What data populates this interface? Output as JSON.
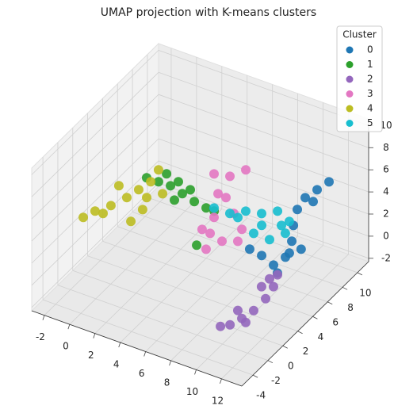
{
  "chart_data": {
    "type": "scatter3d",
    "title": "UMAP projection with K-means clusters",
    "legend_title": "Cluster",
    "legend": "upper right",
    "grid": true,
    "xlim": [
      -3,
      13.6
    ],
    "xticks": [
      -2,
      0,
      2,
      4,
      6,
      8,
      10,
      12
    ],
    "ylim": [
      -5.5,
      11.5
    ],
    "yticks": [
      -4,
      -2,
      0,
      2,
      4,
      6,
      8,
      10
    ],
    "zlim": [
      -2.3,
      10.6
    ],
    "zticks": [
      -2,
      0,
      2,
      4,
      6,
      8,
      10
    ],
    "series": [
      {
        "name": "0",
        "color": "#1f77b4",
        "x": [
          10.84,
          10.62,
          10.4,
          10.64,
          11.35,
          12.19,
          12.76,
          12.54,
          11.29,
          10.22,
          13.23,
          13.2,
          11.09,
          12.75
        ],
        "y": [
          10.87,
          9.65,
          8.43,
          6.96,
          5.23,
          3.59,
          1.77,
          0.55,
          1.08,
          1.29,
          -0.1,
          3.13,
          8.32,
          2.31
        ],
        "z": [
          4.2,
          4.2,
          4.2,
          4.2,
          4.2,
          4.2,
          4.2,
          4.2,
          4.2,
          4.2,
          4.2,
          4.2,
          4.2,
          4.2
        ]
      },
      {
        "name": "1",
        "color": "#2ca02c",
        "x": [
          0.05,
          0.97,
          1.9,
          3.05,
          4.21,
          5.27,
          5.92,
          0.97,
          2.12,
          3.28,
          2.97,
          6.92
        ],
        "y": [
          4.73,
          4.76,
          4.79,
          4.42,
          4.06,
          3.85,
          3.82,
          5.84,
          5.47,
          5.1,
          3.5,
          -0.22
        ],
        "z": [
          4.2,
          4.2,
          4.2,
          4.2,
          4.2,
          4.2,
          4.2,
          4.2,
          4.2,
          4.2,
          4.2,
          4.2
        ]
      },
      {
        "name": "2",
        "color": "#9467bd",
        "x": [
          10.8,
          11.27,
          11.52,
          11.53,
          11.31,
          11.0,
          10.54,
          10.61,
          10.58,
          11.77,
          10.58
        ],
        "y": [
          4.03,
          2.7,
          1.22,
          -0.4,
          -1.61,
          -2.67,
          -3.17,
          -0.96,
          2.27,
          -1.87,
          3.34
        ],
        "z": [
          0.3,
          0.3,
          0.3,
          0.3,
          0.3,
          0.3,
          0.3,
          0.3,
          0.3,
          0.3,
          0.3
        ]
      },
      {
        "name": "3",
        "color": "#e377c2",
        "x": [
          3.72,
          4.78,
          5.32,
          5.12,
          6.29,
          7.0,
          7.7,
          8.15,
          9.07,
          8.6,
          7.2,
          5.81,
          6.3
        ],
        "y": [
          7.54,
          7.87,
          9.08,
          5.7,
          3.18,
          1.45,
          -0.28,
          1.09,
          1.65,
          2.99,
          4.29,
          5.59,
          1.56
        ],
        "z": [
          4.2,
          4.2,
          4.2,
          4.2,
          4.2,
          4.2,
          4.2,
          4.2,
          4.2,
          4.2,
          4.2,
          4.2,
          4.2
        ]
      },
      {
        "name": "4",
        "color": "#bcbd22",
        "x": [
          -1.28,
          -0.97,
          -0.38,
          0.07,
          0.29,
          0.52,
          0.27,
          1.71,
          1.69,
          -1.09,
          1.22,
          1.91,
          -0.37
        ],
        "y": [
          -1.51,
          -0.45,
          0.67,
          2.04,
          3.26,
          4.48,
          5.95,
          -0.2,
          1.41,
          2.94,
          2.75,
          3.71,
          -0.4
        ],
        "z": [
          4.2,
          4.2,
          4.2,
          4.2,
          4.2,
          4.2,
          4.2,
          4.2,
          4.2,
          4.2,
          4.2,
          4.2,
          4.2
        ]
      },
      {
        "name": "5",
        "color": "#17becf",
        "x": [
          5.73,
          6.97,
          7.75,
          8.81,
          9.59,
          10.88,
          11.35,
          10.81,
          9.52,
          9.51,
          10.66,
          7.67
        ],
        "y": [
          4.13,
          4.15,
          4.95,
          5.28,
          6.09,
          5.48,
          4.15,
          2.95,
          3.01,
          4.1,
          4.8,
          4.03
        ],
        "z": [
          4.2,
          4.2,
          4.2,
          4.2,
          4.2,
          4.2,
          4.2,
          4.2,
          4.2,
          4.2,
          4.2,
          4.2
        ]
      }
    ]
  }
}
